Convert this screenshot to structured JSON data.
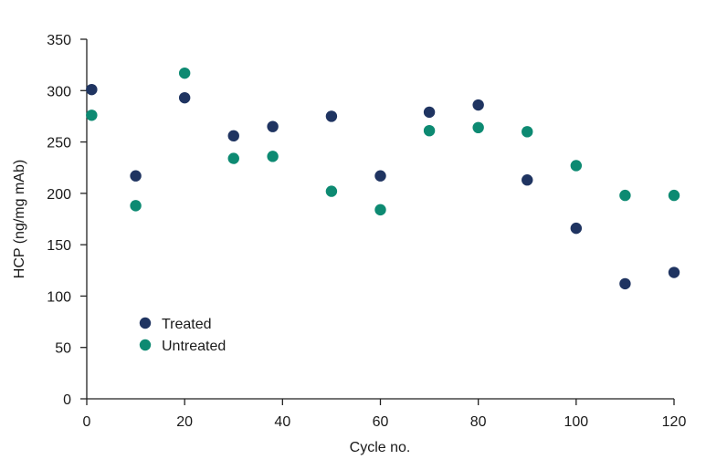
{
  "chart_data": {
    "type": "scatter",
    "title": "",
    "xlabel": "Cycle no.",
    "ylabel": "HCP (ng/mg mAb)",
    "xlim": [
      0,
      120
    ],
    "ylim": [
      0,
      350
    ],
    "xticks": [
      0,
      20,
      40,
      60,
      80,
      100,
      120
    ],
    "yticks": [
      0,
      50,
      100,
      150,
      200,
      250,
      300,
      350
    ],
    "grid": false,
    "legend_position": "lower-left",
    "series": [
      {
        "name": "Treated",
        "color": "#1f3461",
        "points": [
          {
            "x": 1,
            "y": 301
          },
          {
            "x": 10,
            "y": 217
          },
          {
            "x": 20,
            "y": 293
          },
          {
            "x": 30,
            "y": 256
          },
          {
            "x": 38,
            "y": 265
          },
          {
            "x": 50,
            "y": 275
          },
          {
            "x": 60,
            "y": 217
          },
          {
            "x": 70,
            "y": 279
          },
          {
            "x": 80,
            "y": 286
          },
          {
            "x": 90,
            "y": 213
          },
          {
            "x": 100,
            "y": 166
          },
          {
            "x": 110,
            "y": 112
          },
          {
            "x": 120,
            "y": 123
          }
        ]
      },
      {
        "name": "Untreated",
        "color": "#0d8a72",
        "points": [
          {
            "x": 1,
            "y": 276
          },
          {
            "x": 10,
            "y": 188
          },
          {
            "x": 20,
            "y": 317
          },
          {
            "x": 30,
            "y": 234
          },
          {
            "x": 38,
            "y": 236
          },
          {
            "x": 50,
            "y": 202
          },
          {
            "x": 60,
            "y": 184
          },
          {
            "x": 70,
            "y": 261
          },
          {
            "x": 80,
            "y": 264
          },
          {
            "x": 90,
            "y": 260
          },
          {
            "x": 100,
            "y": 227
          },
          {
            "x": 110,
            "y": 198
          },
          {
            "x": 120,
            "y": 198
          }
        ]
      }
    ]
  }
}
